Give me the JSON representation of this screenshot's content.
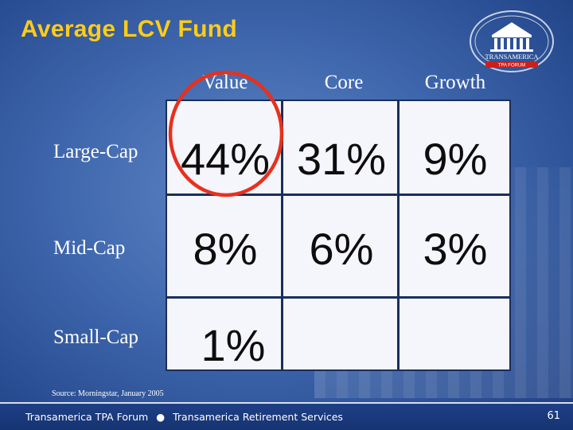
{
  "header": {
    "title": "Average LCV Fund"
  },
  "logo": {
    "icon": "transamerica-pyramid-logo-icon",
    "brand_text": "TRANSAMERICA",
    "sub_text": "TPA FORUM"
  },
  "table": {
    "columns": [
      "Value",
      "Core",
      "Growth"
    ],
    "rows": [
      {
        "label": "Large-Cap",
        "cells": [
          "44%",
          "31%",
          "9%"
        ]
      },
      {
        "label": "Mid-Cap",
        "cells": [
          "8%",
          "6%",
          "3%"
        ]
      },
      {
        "label": "Small-Cap",
        "cells": [
          "1%",
          "",
          ""
        ]
      }
    ],
    "highlight_color": "#e8301c"
  },
  "source": "Source:  Morningstar,  January 2005",
  "footer": {
    "left_text": "Transamerica TPA Forum",
    "separator": "●",
    "right_text": "Transamerica Retirement Services",
    "page_number": "61"
  }
}
